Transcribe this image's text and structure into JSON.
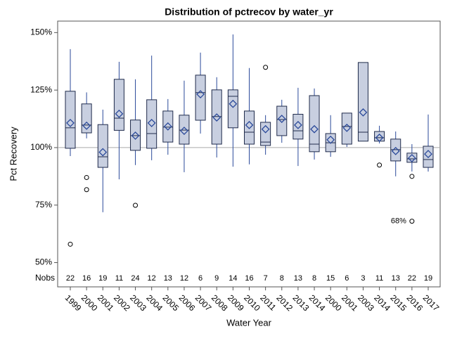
{
  "chart_data": {
    "type": "box",
    "title": "Distribution of pctrecov by water_yr",
    "x_label": "Water Year",
    "y_label": "Pct Recovery",
    "nobs_label": "Nobs",
    "categories": [
      "1999",
      "2000",
      "2001",
      "2002",
      "2003",
      "2004",
      "2005",
      "2006",
      "2007",
      "2008",
      "2009",
      "2010",
      "2011",
      "2012",
      "2013",
      "2014",
      "2000",
      "2001",
      "2003",
      "2014",
      "2015",
      "2016",
      "2017"
    ],
    "boxes": [
      {
        "min": 96.3,
        "q1": 99.7,
        "median": 108.6,
        "q3": 124.5,
        "max": 142.8,
        "mean": 110.7,
        "outliers": [
          58
        ],
        "nobs": 22
      },
      {
        "min": 104,
        "q1": 106.4,
        "median": 109.8,
        "q3": 119,
        "max": 124,
        "mean": 109.5,
        "outliers": [
          87,
          81.7
        ],
        "nobs": 16
      },
      {
        "min": 71.9,
        "q1": 91.4,
        "median": 96,
        "q3": 110,
        "max": 116.5,
        "mean": 98,
        "outliers": [],
        "nobs": 19
      },
      {
        "min": 86.2,
        "q1": 107.5,
        "median": 112.8,
        "q3": 129.7,
        "max": 137.3,
        "mean": 114.7,
        "outliers": [],
        "nobs": 11
      },
      {
        "min": 92.4,
        "q1": 98.8,
        "median": 105.2,
        "q3": 112,
        "max": 129.7,
        "mean": 105.2,
        "outliers": [
          74.9
        ],
        "nobs": 24
      },
      {
        "min": 94.5,
        "q1": 99.7,
        "median": 106.1,
        "q3": 120.8,
        "max": 140,
        "mean": 110.7,
        "outliers": [],
        "nobs": 12
      },
      {
        "min": 96.9,
        "q1": 102.4,
        "median": 108.9,
        "q3": 115.9,
        "max": 121.1,
        "mean": 109.2,
        "outliers": [],
        "nobs": 13
      },
      {
        "min": 89.3,
        "q1": 101.5,
        "median": 107.6,
        "q3": 114.1,
        "max": 129.1,
        "mean": 107.3,
        "outliers": [],
        "nobs": 12
      },
      {
        "min": 106.1,
        "q1": 111.9,
        "median": 123.9,
        "q3": 131.5,
        "max": 141.3,
        "mean": 123.2,
        "outliers": [],
        "nobs": 6
      },
      {
        "min": 95.7,
        "q1": 101.5,
        "median": 113.5,
        "q3": 125.1,
        "max": 130.6,
        "mean": 113.1,
        "outliers": [],
        "nobs": 9
      },
      {
        "min": 91.7,
        "q1": 108.6,
        "median": 122.3,
        "q3": 125.1,
        "max": 149.2,
        "mean": 119,
        "outliers": [],
        "nobs": 14
      },
      {
        "min": 92.7,
        "q1": 101.5,
        "median": 106.7,
        "q3": 115.9,
        "max": 134.6,
        "mean": 109.8,
        "outliers": [],
        "nobs": 16
      },
      {
        "min": 96.9,
        "q1": 100.9,
        "median": 102.4,
        "q3": 111,
        "max": 114.1,
        "mean": 108,
        "outliers": [
          134.9
        ],
        "nobs": 7
      },
      {
        "min": 102.1,
        "q1": 105.2,
        "median": 112.2,
        "q3": 118,
        "max": 120.8,
        "mean": 112.5,
        "outliers": [],
        "nobs": 8
      },
      {
        "min": 92,
        "q1": 103.7,
        "median": 107.3,
        "q3": 114.5,
        "max": 126,
        "mean": 109.8,
        "outliers": [],
        "nobs": 13
      },
      {
        "min": 94.8,
        "q1": 98.2,
        "median": 101.5,
        "q3": 122.6,
        "max": 125.7,
        "mean": 108,
        "outliers": [],
        "nobs": 8
      },
      {
        "min": 96,
        "q1": 98.2,
        "median": 102.1,
        "q3": 106.1,
        "max": 114.1,
        "mean": 103.4,
        "outliers": [],
        "nobs": 15
      },
      {
        "min": 100.3,
        "q1": 101.5,
        "median": 109.2,
        "q3": 115,
        "max": 115,
        "mean": 108.6,
        "outliers": [],
        "nobs": 6
      },
      {
        "min": 102.8,
        "q1": 102.8,
        "median": 106.7,
        "q3": 137,
        "max": 137,
        "mean": 115.3,
        "outliers": [],
        "nobs": 3
      },
      {
        "min": 101.8,
        "q1": 102.8,
        "median": 104.3,
        "q3": 107,
        "max": 109.5,
        "mean": 104.3,
        "outliers": [
          92.4
        ],
        "nobs": 11
      },
      {
        "min": 87.5,
        "q1": 94.2,
        "median": 99.1,
        "q3": 103.7,
        "max": 107,
        "mean": 98.5,
        "outliers": [],
        "nobs": 13
      },
      {
        "min": 89.6,
        "q1": 93.6,
        "median": 95.1,
        "q3": 97.6,
        "max": 101.5,
        "mean": 95.4,
        "outliers": [
          87.5,
          68
        ],
        "outlier_labels": [
          null,
          "68%"
        ],
        "nobs": 22
      },
      {
        "min": 89.6,
        "q1": 91.4,
        "median": 94.8,
        "q3": 100.6,
        "max": 114.4,
        "mean": 97.2,
        "outliers": [],
        "nobs": 19
      }
    ],
    "ylim": [
      39.45,
      155
    ],
    "yticks": [
      {
        "value": 50,
        "label": "50%"
      },
      {
        "value": 75,
        "label": "75%"
      },
      {
        "value": 100,
        "label": "100%"
      },
      {
        "value": 125,
        "label": "125%"
      },
      {
        "value": 150,
        "label": "150%"
      }
    ],
    "reference_line": 100,
    "box_color": "#c8cfe0",
    "line_color": "#2b4a9a"
  }
}
